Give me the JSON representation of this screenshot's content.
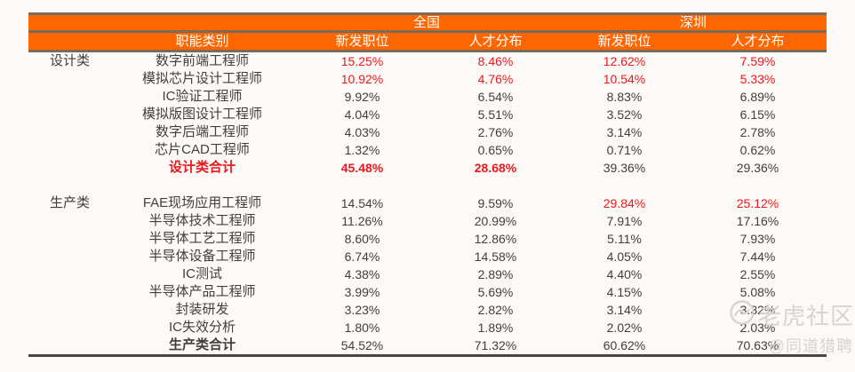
{
  "chart_data": {
    "type": "table",
    "region_headers": [
      "全国",
      "深圳"
    ],
    "columns": [
      "职能类别",
      "新发职位",
      "人才分布",
      "新发职位",
      "人才分布"
    ],
    "groups": [
      {
        "name": "设计类",
        "rows": [
          {
            "title": "数字前端工程师",
            "values": [
              "15.25%",
              "8.46%",
              "12.62%",
              "7.59%"
            ],
            "red": [
              1,
              1,
              1,
              1
            ],
            "bold": [
              0,
              0,
              0,
              0
            ],
            "title_red": 0,
            "title_bold": 0
          },
          {
            "title": "模拟芯片设计工程师",
            "values": [
              "10.92%",
              "4.76%",
              "10.54%",
              "5.33%"
            ],
            "red": [
              1,
              1,
              1,
              1
            ],
            "bold": [
              0,
              0,
              0,
              0
            ],
            "title_red": 0,
            "title_bold": 0
          },
          {
            "title": "IC验证工程师",
            "values": [
              "9.92%",
              "6.54%",
              "8.83%",
              "6.89%"
            ],
            "red": [
              0,
              0,
              0,
              0
            ],
            "bold": [
              0,
              0,
              0,
              0
            ],
            "title_red": 0,
            "title_bold": 0
          },
          {
            "title": "模拟版图设计工程师",
            "values": [
              "4.04%",
              "5.51%",
              "3.52%",
              "6.15%"
            ],
            "red": [
              0,
              0,
              0,
              0
            ],
            "bold": [
              0,
              0,
              0,
              0
            ],
            "title_red": 0,
            "title_bold": 0
          },
          {
            "title": "数字后端工程师",
            "values": [
              "4.03%",
              "2.76%",
              "3.14%",
              "2.78%"
            ],
            "red": [
              0,
              0,
              0,
              0
            ],
            "bold": [
              0,
              0,
              0,
              0
            ],
            "title_red": 0,
            "title_bold": 0
          },
          {
            "title": "芯片CAD工程师",
            "values": [
              "1.32%",
              "0.65%",
              "0.71%",
              "0.62%"
            ],
            "red": [
              0,
              0,
              0,
              0
            ],
            "bold": [
              0,
              0,
              0,
              0
            ],
            "title_red": 0,
            "title_bold": 0
          },
          {
            "title": "设计类合计",
            "values": [
              "45.48%",
              "28.68%",
              "39.36%",
              "29.36%"
            ],
            "red": [
              1,
              1,
              0,
              0
            ],
            "bold": [
              1,
              1,
              0,
              0
            ],
            "title_red": 1,
            "title_bold": 1
          }
        ]
      },
      {
        "name": "生产类",
        "rows": [
          {
            "title": "FAE现场应用工程师",
            "values": [
              "14.54%",
              "9.59%",
              "29.84%",
              "25.12%"
            ],
            "red": [
              0,
              0,
              1,
              1
            ],
            "bold": [
              0,
              0,
              0,
              0
            ],
            "title_red": 0,
            "title_bold": 0
          },
          {
            "title": "半导体技术工程师",
            "values": [
              "11.26%",
              "20.99%",
              "7.91%",
              "17.16%"
            ],
            "red": [
              0,
              0,
              0,
              0
            ],
            "bold": [
              0,
              0,
              0,
              0
            ],
            "title_red": 0,
            "title_bold": 0
          },
          {
            "title": "半导体工艺工程师",
            "values": [
              "8.60%",
              "12.86%",
              "5.11%",
              "7.93%"
            ],
            "red": [
              0,
              0,
              0,
              0
            ],
            "bold": [
              0,
              0,
              0,
              0
            ],
            "title_red": 0,
            "title_bold": 0
          },
          {
            "title": "半导体设备工程师",
            "values": [
              "6.74%",
              "14.58%",
              "4.05%",
              "7.44%"
            ],
            "red": [
              0,
              0,
              0,
              0
            ],
            "bold": [
              0,
              0,
              0,
              0
            ],
            "title_red": 0,
            "title_bold": 0
          },
          {
            "title": "IC测试",
            "values": [
              "4.38%",
              "2.89%",
              "4.40%",
              "2.55%"
            ],
            "red": [
              0,
              0,
              0,
              0
            ],
            "bold": [
              0,
              0,
              0,
              0
            ],
            "title_red": 0,
            "title_bold": 0
          },
          {
            "title": "半导体产品工程师",
            "values": [
              "3.99%",
              "5.69%",
              "4.15%",
              "5.08%"
            ],
            "red": [
              0,
              0,
              0,
              0
            ],
            "bold": [
              0,
              0,
              0,
              0
            ],
            "title_red": 0,
            "title_bold": 0
          },
          {
            "title": "封装研发",
            "values": [
              "3.23%",
              "2.82%",
              "3.14%",
              "3.32%"
            ],
            "red": [
              0,
              0,
              0,
              0
            ],
            "bold": [
              0,
              0,
              0,
              0
            ],
            "title_red": 0,
            "title_bold": 0
          },
          {
            "title": "IC失效分析",
            "values": [
              "1.80%",
              "1.89%",
              "2.02%",
              "2.03%"
            ],
            "red": [
              0,
              0,
              0,
              0
            ],
            "bold": [
              0,
              0,
              0,
              0
            ],
            "title_red": 0,
            "title_bold": 0
          },
          {
            "title": "生产类合计",
            "values": [
              "54.52%",
              "71.32%",
              "60.62%",
              "70.63%"
            ],
            "red": [
              0,
              0,
              0,
              0
            ],
            "bold": [
              0,
              0,
              0,
              0
            ],
            "title_red": 0,
            "title_bold": 1
          }
        ]
      }
    ]
  },
  "watermark": {
    "brand": "老虎社区",
    "handle": "@同道猎聘"
  },
  "colors": {
    "accent_orange": "#ff6600",
    "highlight_red": "#e8191f",
    "header_rule": "#7a6a58",
    "body_text": "#3f3f3f",
    "background": "#fdf9f6",
    "watermark_gray": "#d8d3cf"
  }
}
